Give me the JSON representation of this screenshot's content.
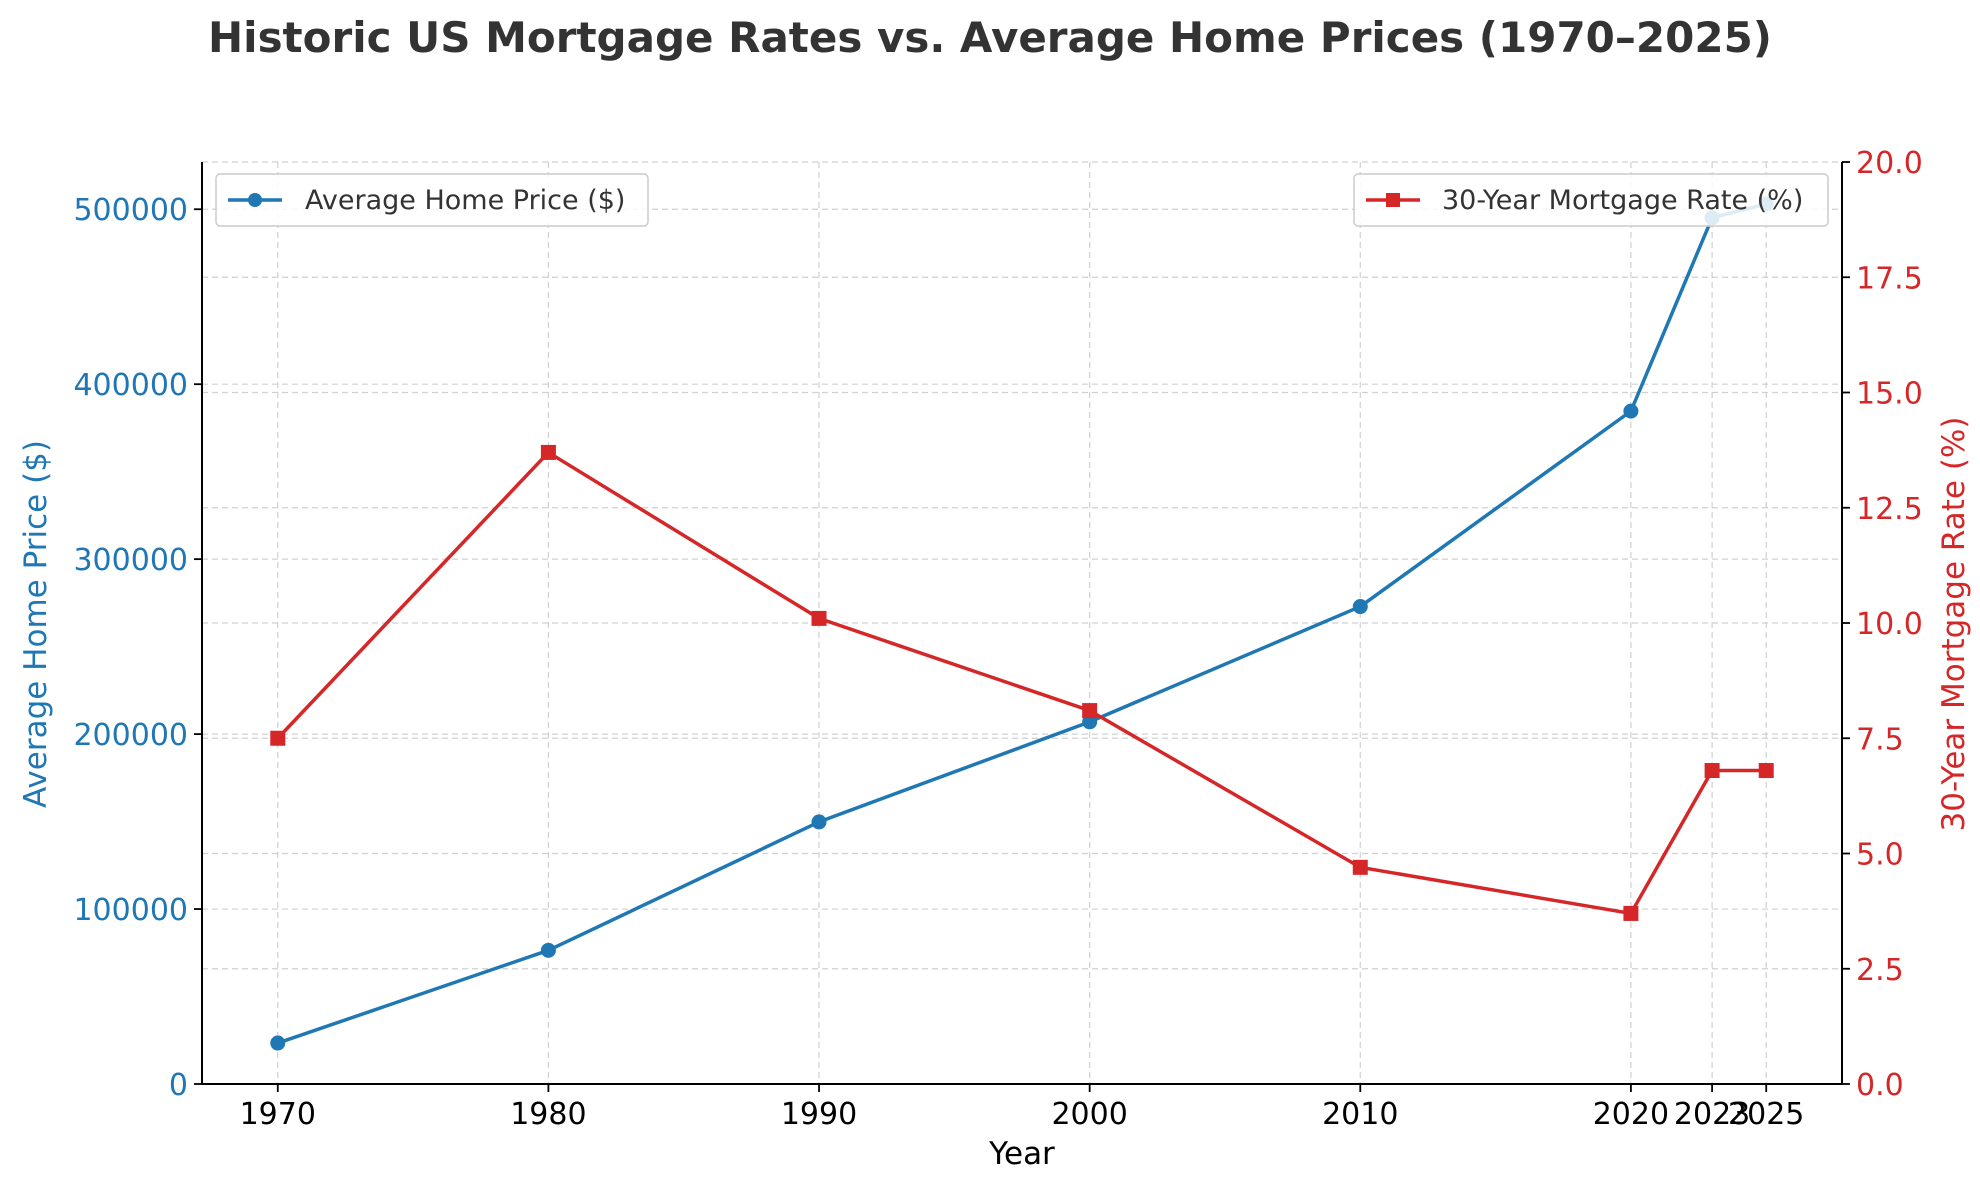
{
  "chart_data": {
    "type": "line",
    "title": "Historic US Mortgage Rates vs. Average Home Prices (1970–2025)",
    "xlabel": "Year",
    "x": [
      1970,
      1980,
      1990,
      2000,
      2010,
      2020,
      2023,
      2025
    ],
    "x_tick_labels": [
      "1970",
      "1980",
      "1990",
      "2000",
      "2010",
      "2020",
      "2023",
      "2025"
    ],
    "xlim": [
      1967.2,
      2027.8
    ],
    "grid": true,
    "y_left": {
      "label": "Average Home Price ($)",
      "lim": [
        0,
        527000
      ],
      "ticks": [
        0,
        100000,
        200000,
        300000,
        400000,
        500000
      ],
      "tick_labels": [
        "0",
        "100000",
        "200000",
        "300000",
        "400000",
        "500000"
      ],
      "color": "#1f77b4"
    },
    "y_right": {
      "label": "30-Year Mortgage Rate (%)",
      "lim": [
        0,
        20
      ],
      "ticks": [
        0,
        2.5,
        5,
        7.5,
        10,
        12.5,
        15,
        17.5,
        20
      ],
      "tick_labels": [
        "0.0",
        "2.5",
        "5.0",
        "7.5",
        "10.0",
        "12.5",
        "15.0",
        "17.5",
        "20.0"
      ],
      "color": "#d62728"
    },
    "series": [
      {
        "name": "Average Home Price ($)",
        "axis": "left",
        "marker": "circle",
        "color": "#1f77b4",
        "values": [
          23400,
          76400,
          149800,
          207000,
          272900,
          384600,
          495100,
          503000
        ],
        "legend_position": "top-left"
      },
      {
        "name": "30-Year Mortgage Rate (%)",
        "axis": "right",
        "marker": "square",
        "color": "#d62728",
        "values": [
          7.5,
          13.7,
          10.1,
          8.1,
          4.7,
          3.7,
          6.8,
          6.8
        ],
        "legend_position": "top-right"
      }
    ]
  }
}
